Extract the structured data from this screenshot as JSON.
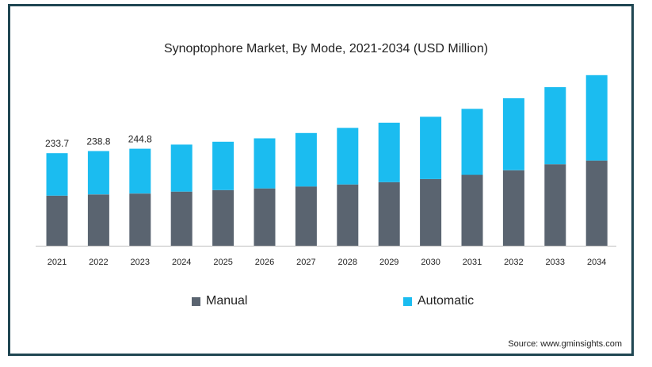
{
  "chart_data": {
    "type": "bar",
    "stacked": true,
    "title": "Synoptophore Market, By Mode, 2021-2034 (USD Million)",
    "categories": [
      "2021",
      "2022",
      "2023",
      "2024",
      "2025",
      "2026",
      "2027",
      "2028",
      "2029",
      "2030",
      "2031",
      "2032",
      "2033",
      "2034"
    ],
    "series": [
      {
        "name": "Manual",
        "color": "#5a6470",
        "values": [
          126.5,
          129.5,
          131.7,
          136.7,
          140.3,
          144.6,
          149.6,
          154.6,
          160.3,
          168.2,
          179.0,
          190.5,
          205.6,
          214.9
        ]
      },
      {
        "name": "Automatic",
        "color": "#1bbcf0",
        "values": [
          107.2,
          109.3,
          113.1,
          118.5,
          122.1,
          126.4,
          134.9,
          142.8,
          150.0,
          157.2,
          166.5,
          181.6,
          194.5,
          215.6
        ]
      }
    ],
    "data_labels": [
      "233.7",
      "238.8",
      "244.8",
      "",
      "",
      "",
      "",
      "",
      "",
      "",
      "",
      "",
      "",
      ""
    ],
    "ylim": [
      0,
      430
    ],
    "grid": false,
    "legend": "bottom"
  },
  "source": "Source: www.gminsights.com"
}
